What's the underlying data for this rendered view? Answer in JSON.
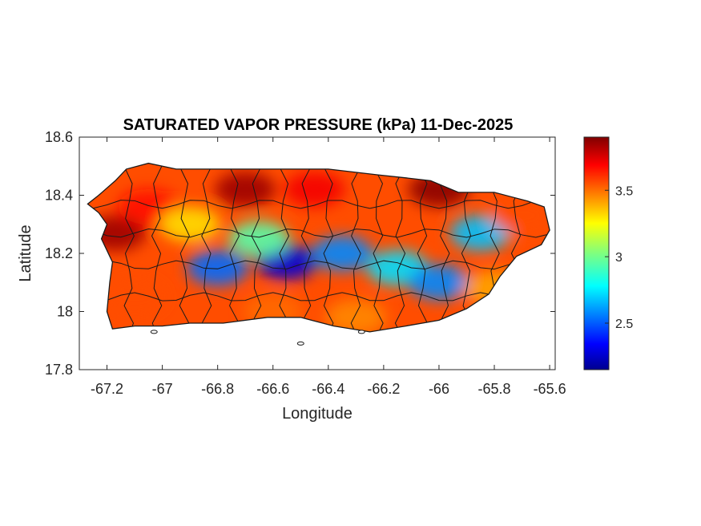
{
  "chart_data": {
    "type": "heatmap",
    "title": "SATURATED VAPOR PRESSURE (kPa) 11-Dec-2025",
    "xlabel": "Longitude",
    "ylabel": "Latitude",
    "xlim": [
      -67.3,
      -65.58
    ],
    "ylim": [
      17.8,
      18.6
    ],
    "xticks": [
      -67.2,
      -67,
      -66.8,
      -66.6,
      -66.4,
      -66.2,
      -66,
      -65.8,
      -65.6
    ],
    "xtick_labels": [
      "-67.2",
      "-67",
      "-66.8",
      "-66.6",
      "-66.4",
      "-66.2",
      "-66",
      "-65.8",
      "-65.6"
    ],
    "yticks": [
      17.8,
      18,
      18.2,
      18.4,
      18.6
    ],
    "ytick_labels": [
      "17.8",
      "18",
      "18.2",
      "18.4",
      "18.6"
    ],
    "colorbar": {
      "colormap": "jet",
      "range": [
        2.15,
        3.9
      ],
      "ticks": [
        2.5,
        3,
        3.5
      ],
      "tick_labels": [
        "2.5",
        "3",
        "3.5"
      ]
    },
    "grid": false,
    "island_outline": [
      [
        -67.27,
        18.37
      ],
      [
        -67.23,
        18.4
      ],
      [
        -67.17,
        18.45
      ],
      [
        -67.13,
        18.49
      ],
      [
        -67.05,
        18.51
      ],
      [
        -66.95,
        18.49
      ],
      [
        -66.8,
        18.49
      ],
      [
        -66.6,
        18.49
      ],
      [
        -66.4,
        18.49
      ],
      [
        -66.22,
        18.47
      ],
      [
        -66.12,
        18.46
      ],
      [
        -66.03,
        18.45
      ],
      [
        -65.93,
        18.41
      ],
      [
        -65.8,
        18.41
      ],
      [
        -65.68,
        18.38
      ],
      [
        -65.62,
        18.36
      ],
      [
        -65.6,
        18.28
      ],
      [
        -65.63,
        18.23
      ],
      [
        -65.72,
        18.19
      ],
      [
        -65.78,
        18.12
      ],
      [
        -65.82,
        18.06
      ],
      [
        -65.9,
        18.01
      ],
      [
        -66.0,
        17.97
      ],
      [
        -66.12,
        17.95
      ],
      [
        -66.25,
        17.93
      ],
      [
        -66.38,
        17.95
      ],
      [
        -66.5,
        17.98
      ],
      [
        -66.62,
        17.98
      ],
      [
        -66.78,
        17.96
      ],
      [
        -66.9,
        17.96
      ],
      [
        -67.0,
        17.95
      ],
      [
        -67.1,
        17.95
      ],
      [
        -67.18,
        17.94
      ],
      [
        -67.2,
        18.0
      ],
      [
        -67.19,
        18.1
      ],
      [
        -67.18,
        18.17
      ],
      [
        -67.22,
        18.25
      ],
      [
        -67.2,
        18.3
      ],
      [
        -67.23,
        18.34
      ]
    ],
    "field_values": [
      {
        "lon": -66.55,
        "lat": 18.17,
        "value": 2.3
      },
      {
        "lon": -66.8,
        "lat": 18.15,
        "value": 2.55
      },
      {
        "lon": -66.35,
        "lat": 18.2,
        "value": 2.6
      },
      {
        "lon": -66.15,
        "lat": 18.15,
        "value": 2.75
      },
      {
        "lon": -66.0,
        "lat": 18.1,
        "value": 2.6
      },
      {
        "lon": -65.85,
        "lat": 18.27,
        "value": 2.7
      },
      {
        "lon": -66.65,
        "lat": 18.25,
        "value": 2.95
      },
      {
        "lon": -66.7,
        "lat": 18.42,
        "value": 3.85
      },
      {
        "lon": -66.45,
        "lat": 18.42,
        "value": 3.7
      },
      {
        "lon": -66.0,
        "lat": 18.42,
        "value": 3.88
      },
      {
        "lon": -67.17,
        "lat": 18.27,
        "value": 3.85
      },
      {
        "lon": -67.05,
        "lat": 18.36,
        "value": 3.65
      },
      {
        "lon": -67.1,
        "lat": 18.05,
        "value": 3.55
      },
      {
        "lon": -66.6,
        "lat": 18.0,
        "value": 3.5
      },
      {
        "lon": -66.3,
        "lat": 17.98,
        "value": 3.45
      },
      {
        "lon": -65.7,
        "lat": 18.33,
        "value": 3.55
      },
      {
        "lon": -65.8,
        "lat": 18.08,
        "value": 3.4
      },
      {
        "lon": -66.9,
        "lat": 18.3,
        "value": 3.3
      }
    ],
    "small_islets": [
      [
        -66.5,
        17.89
      ],
      [
        -66.28,
        17.93
      ],
      [
        -67.03,
        17.93
      ]
    ]
  }
}
